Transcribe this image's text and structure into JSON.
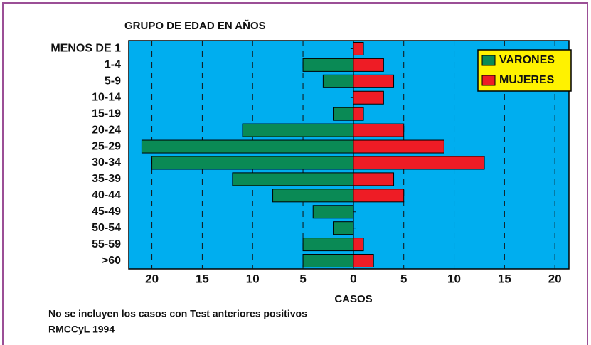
{
  "chart_data": {
    "type": "pyramid",
    "title": "GRUPO DE EDAD EN AÑOS",
    "x_label": "CASOS",
    "notes": [
      "No se incluyen los casos con Test anteriores positivos",
      "RMCCyL 1994"
    ],
    "categories": [
      "MENOS DE 1",
      "1-4",
      "5-9",
      "10-14",
      "15-19",
      "20-24",
      "25-29",
      "30-34",
      "35-39",
      "40-44",
      "45-49",
      "50-54",
      "55-59",
      ">60"
    ],
    "series": [
      {
        "name": "VARONES",
        "color": "#0a8a55",
        "values": [
          0,
          -5,
          -3,
          0,
          -2,
          -11,
          -21,
          -20,
          -12,
          -8,
          -4,
          -2,
          -5,
          -5
        ]
      },
      {
        "name": "MUJERES",
        "color": "#ee1c25",
        "values": [
          1,
          3,
          4,
          3,
          1,
          5,
          9,
          13,
          4,
          5,
          0,
          0,
          1,
          2
        ]
      }
    ],
    "xlim": [
      -22.3,
      21.4
    ],
    "xticks": [
      {
        "value": -20,
        "label": "20"
      },
      {
        "value": -15,
        "label": "15"
      },
      {
        "value": -10,
        "label": "10"
      },
      {
        "value": -5,
        "label": "5"
      },
      0,
      5,
      10,
      15,
      20
    ],
    "grid": true,
    "legend": "upper right",
    "background": "#00aeef"
  }
}
